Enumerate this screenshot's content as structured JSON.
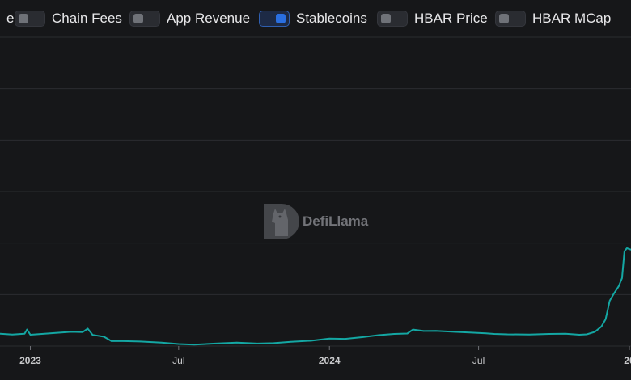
{
  "toggles": [
    {
      "label": "e",
      "on": false
    },
    {
      "label": "Chain Fees",
      "on": false
    },
    {
      "label": "App Revenue",
      "on": false
    },
    {
      "label": "Stablecoins",
      "on": true
    },
    {
      "label": "HBAR Price",
      "on": false
    },
    {
      "label": "HBAR MCap",
      "on": false
    }
  ],
  "watermark": {
    "text": "DefiLlama",
    "icon": "llama-logo-icon"
  },
  "colors": {
    "background": "#161719",
    "series": "#14a7a3",
    "grid": "#2b2c30",
    "toggle_on": "#2a6fe0"
  },
  "chart_data": {
    "type": "line",
    "x_ticks": [
      "2023",
      "Jul",
      "2024",
      "Jul",
      "20"
    ],
    "x_start": "2022-11-25",
    "x_end": "2025-01-03",
    "grid": true,
    "legend": "toggles across top",
    "series": [
      {
        "values": [
          [
            "2022-11-25",
            6.0
          ],
          [
            "2022-12-10",
            5.6
          ],
          [
            "2022-12-25",
            6.0
          ],
          [
            "2022-12-28",
            8.0
          ],
          [
            "2023-01-01",
            5.5
          ],
          [
            "2023-01-15",
            5.9
          ],
          [
            "2023-02-01",
            6.4
          ],
          [
            "2023-02-20",
            6.9
          ],
          [
            "2023-03-06",
            6.8
          ],
          [
            "2023-03-12",
            8.5
          ],
          [
            "2023-03-18",
            5.4
          ],
          [
            "2023-04-01",
            4.5
          ],
          [
            "2023-04-10",
            2.4
          ],
          [
            "2023-04-25",
            2.4
          ],
          [
            "2023-05-15",
            2.2
          ],
          [
            "2023-06-10",
            1.7
          ],
          [
            "2023-07-01",
            1.0
          ],
          [
            "2023-07-20",
            0.7
          ],
          [
            "2023-08-15",
            1.2
          ],
          [
            "2023-09-10",
            1.7
          ],
          [
            "2023-10-05",
            1.2
          ],
          [
            "2023-10-25",
            1.4
          ],
          [
            "2023-11-15",
            2.1
          ],
          [
            "2023-12-10",
            2.6
          ],
          [
            "2024-01-01",
            3.6
          ],
          [
            "2024-01-20",
            3.5
          ],
          [
            "2024-02-10",
            4.3
          ],
          [
            "2024-03-01",
            5.3
          ],
          [
            "2024-03-20",
            5.9
          ],
          [
            "2024-04-05",
            6.1
          ],
          [
            "2024-04-12",
            8.0
          ],
          [
            "2024-04-25",
            7.3
          ],
          [
            "2024-05-10",
            7.4
          ],
          [
            "2024-06-01",
            6.9
          ],
          [
            "2024-06-20",
            6.6
          ],
          [
            "2024-07-10",
            6.2
          ],
          [
            "2024-07-20",
            5.9
          ],
          [
            "2024-08-05",
            5.7
          ],
          [
            "2024-09-01",
            5.6
          ],
          [
            "2024-09-25",
            5.9
          ],
          [
            "2024-10-15",
            6.0
          ],
          [
            "2024-11-01",
            5.5
          ],
          [
            "2024-11-10",
            5.7
          ],
          [
            "2024-11-20",
            6.9
          ],
          [
            "2024-11-28",
            9.5
          ],
          [
            "2024-12-03",
            13.0
          ],
          [
            "2024-12-08",
            22.0
          ],
          [
            "2024-12-14",
            26.0
          ],
          [
            "2024-12-19",
            29.0
          ],
          [
            "2024-12-23",
            33.0
          ],
          [
            "2024-12-26",
            46.0
          ],
          [
            "2024-12-29",
            47.5
          ],
          [
            "2025-01-03",
            46.8
          ]
        ]
      }
    ],
    "ylim": [
      0,
      150
    ]
  }
}
